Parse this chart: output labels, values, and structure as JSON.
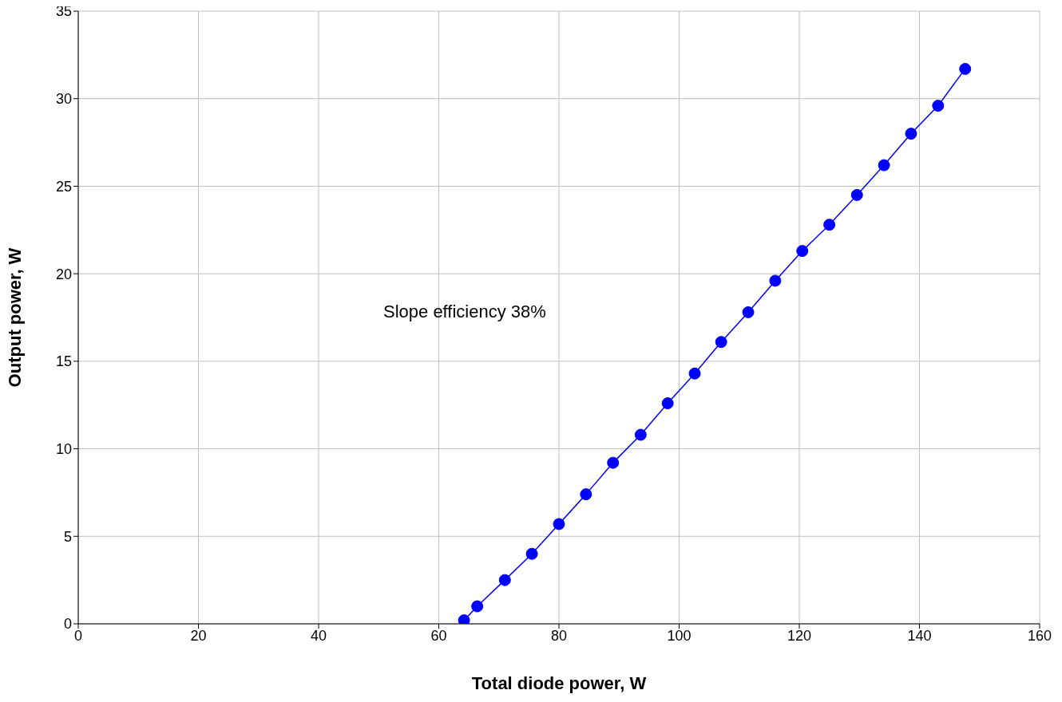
{
  "chart_data": {
    "type": "line",
    "xlabel": "Total diode power, W",
    "ylabel": "Output power, W",
    "annotations": [
      "Slope efficiency 38%"
    ],
    "xlim": [
      0,
      160
    ],
    "xticks": [
      0,
      20,
      40,
      60,
      80,
      100,
      120,
      140,
      160
    ],
    "ylim": [
      0,
      35
    ],
    "yticks": [
      0,
      5,
      10,
      15,
      20,
      25,
      30,
      35
    ],
    "grid": true,
    "marker": "circle",
    "line_style": "solid",
    "series": [
      {
        "color": "#0000ff",
        "x": [
          64.2,
          66.4,
          71.0,
          75.5,
          80.0,
          84.5,
          89.0,
          93.6,
          98.1,
          102.6,
          107.0,
          111.5,
          116.0,
          120.5,
          125.0,
          129.6,
          134.1,
          138.6,
          143.1,
          147.6
        ],
        "values": [
          0.2,
          1.0,
          2.5,
          4.0,
          5.7,
          7.4,
          9.2,
          10.8,
          12.6,
          14.3,
          16.1,
          17.8,
          19.6,
          21.3,
          22.8,
          24.5,
          26.2,
          28.0,
          29.6,
          31.7
        ]
      }
    ]
  }
}
